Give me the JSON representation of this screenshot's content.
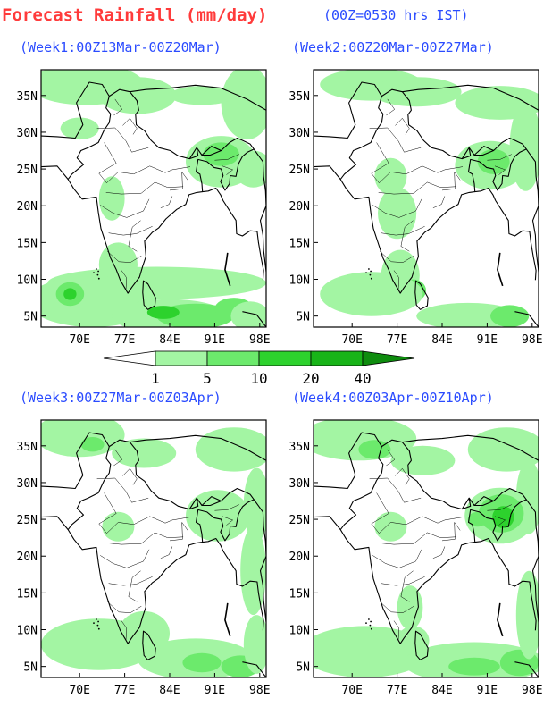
{
  "header": {
    "title": "Forecast Rainfall (mm/day)",
    "subtitle": "(00Z=0530 hrs IST)"
  },
  "colorbar": {
    "levels": [
      "1",
      "5",
      "10",
      "20",
      "40"
    ],
    "colors": [
      "#ffffff",
      "#a3f5a3",
      "#6cea6c",
      "#2dd22d",
      "#18b418",
      "#0e8c0e",
      "#0a6e0a"
    ]
  },
  "axes": {
    "lon_labels": [
      "70E",
      "77E",
      "84E",
      "91E",
      "98E"
    ],
    "lat_labels": [
      "35N",
      "30N",
      "25N",
      "20N",
      "15N",
      "10N",
      "5N"
    ]
  },
  "panels": [
    {
      "title": "(Week1:00Z13Mar-00Z20Mar)"
    },
    {
      "title": "(Week2:00Z20Mar-00Z27Mar)"
    },
    {
      "title": "(Week3:00Z27Mar-00Z03Apr)"
    },
    {
      "title": "(Week4:00Z03Apr-00Z10Apr)"
    }
  ]
}
